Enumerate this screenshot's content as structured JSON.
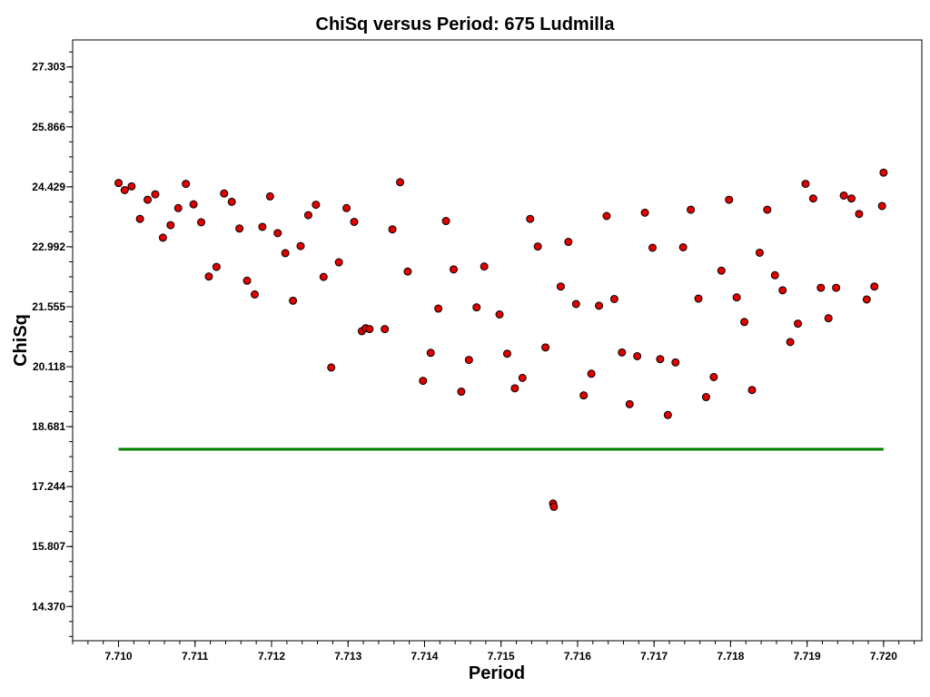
{
  "chart_data": {
    "type": "scatter",
    "title": "ChiSq versus Period: 675 Ludmilla",
    "xlabel": "Period",
    "ylabel": "ChiSq",
    "xlim": [
      7.7094,
      7.7205
    ],
    "ylim": [
      13.55,
      27.95
    ],
    "x_ticks": [
      "7.710",
      "7.711",
      "7.712",
      "7.713",
      "7.714",
      "7.715",
      "7.716",
      "7.717",
      "7.718",
      "7.719",
      "7.720"
    ],
    "y_ticks": [
      "27.303",
      "25.866",
      "24.429",
      "22.992",
      "21.555",
      "20.118",
      "18.681",
      "17.244",
      "15.807",
      "14.370"
    ],
    "grid": false,
    "legend": "none",
    "marker_color": "#e00000",
    "marker_edge_color": "#000000",
    "line_color": "#008000",
    "reference_line": {
      "y": 18.14,
      "x_range": [
        7.71,
        7.72
      ]
    },
    "points": [
      [
        7.71,
        24.52
      ],
      [
        7.71008,
        24.35
      ],
      [
        7.71017,
        24.44
      ],
      [
        7.71028,
        23.66
      ],
      [
        7.71038,
        24.12
      ],
      [
        7.71048,
        24.25
      ],
      [
        7.71058,
        23.21
      ],
      [
        7.71068,
        23.51
      ],
      [
        7.71078,
        23.92
      ],
      [
        7.71088,
        24.5
      ],
      [
        7.71098,
        24.01
      ],
      [
        7.71108,
        23.58
      ],
      [
        7.71118,
        22.28
      ],
      [
        7.71128,
        22.51
      ],
      [
        7.71138,
        24.27
      ],
      [
        7.71148,
        24.07
      ],
      [
        7.71158,
        23.43
      ],
      [
        7.71168,
        22.18
      ],
      [
        7.71178,
        21.85
      ],
      [
        7.71188,
        23.47
      ],
      [
        7.71198,
        24.2
      ],
      [
        7.71208,
        23.32
      ],
      [
        7.71218,
        22.84
      ],
      [
        7.71228,
        21.7
      ],
      [
        7.71238,
        23.01
      ],
      [
        7.71248,
        23.75
      ],
      [
        7.71258,
        24.0
      ],
      [
        7.71268,
        22.27
      ],
      [
        7.71278,
        20.1
      ],
      [
        7.71288,
        22.62
      ],
      [
        7.71298,
        23.92
      ],
      [
        7.71308,
        23.59
      ],
      [
        7.71318,
        20.97
      ],
      [
        7.71323,
        21.04
      ],
      [
        7.71328,
        21.02
      ],
      [
        7.71348,
        21.02
      ],
      [
        7.71358,
        23.41
      ],
      [
        7.71368,
        24.54
      ],
      [
        7.71378,
        22.4
      ],
      [
        7.71398,
        19.78
      ],
      [
        7.71408,
        20.45
      ],
      [
        7.71418,
        21.51
      ],
      [
        7.71428,
        23.61
      ],
      [
        7.71438,
        22.45
      ],
      [
        7.71448,
        19.52
      ],
      [
        7.71458,
        20.28
      ],
      [
        7.71468,
        21.54
      ],
      [
        7.71478,
        22.52
      ],
      [
        7.71498,
        21.37
      ],
      [
        7.71508,
        20.43
      ],
      [
        7.71518,
        19.6
      ],
      [
        7.71528,
        19.85
      ],
      [
        7.71538,
        23.66
      ],
      [
        7.71548,
        23.0
      ],
      [
        7.71558,
        20.58
      ],
      [
        7.71568,
        16.84
      ],
      [
        7.71569,
        16.76
      ],
      [
        7.71578,
        22.04
      ],
      [
        7.71588,
        23.11
      ],
      [
        7.71598,
        21.62
      ],
      [
        7.71608,
        19.43
      ],
      [
        7.71618,
        19.95
      ],
      [
        7.71628,
        21.58
      ],
      [
        7.71638,
        23.73
      ],
      [
        7.71648,
        21.74
      ],
      [
        7.71658,
        20.46
      ],
      [
        7.71668,
        19.22
      ],
      [
        7.71678,
        20.37
      ],
      [
        7.71688,
        23.81
      ],
      [
        7.71698,
        22.97
      ],
      [
        7.71708,
        20.3
      ],
      [
        7.71718,
        18.96
      ],
      [
        7.71728,
        20.22
      ],
      [
        7.71738,
        22.98
      ],
      [
        7.71748,
        23.88
      ],
      [
        7.71758,
        21.75
      ],
      [
        7.71768,
        19.39
      ],
      [
        7.71778,
        19.87
      ],
      [
        7.71788,
        22.42
      ],
      [
        7.71798,
        24.12
      ],
      [
        7.71808,
        21.78
      ],
      [
        7.71818,
        21.19
      ],
      [
        7.71828,
        19.56
      ],
      [
        7.71838,
        22.85
      ],
      [
        7.71848,
        23.88
      ],
      [
        7.71858,
        22.31
      ],
      [
        7.71868,
        21.95
      ],
      [
        7.71878,
        20.71
      ],
      [
        7.71888,
        21.15
      ],
      [
        7.71898,
        24.5
      ],
      [
        7.71908,
        24.15
      ],
      [
        7.71918,
        22.01
      ],
      [
        7.71928,
        21.28
      ],
      [
        7.71938,
        22.01
      ],
      [
        7.71948,
        24.22
      ],
      [
        7.71958,
        24.15
      ],
      [
        7.71968,
        23.78
      ],
      [
        7.71978,
        21.73
      ],
      [
        7.71988,
        22.04
      ],
      [
        7.71998,
        23.97
      ],
      [
        7.72,
        24.77
      ]
    ]
  }
}
